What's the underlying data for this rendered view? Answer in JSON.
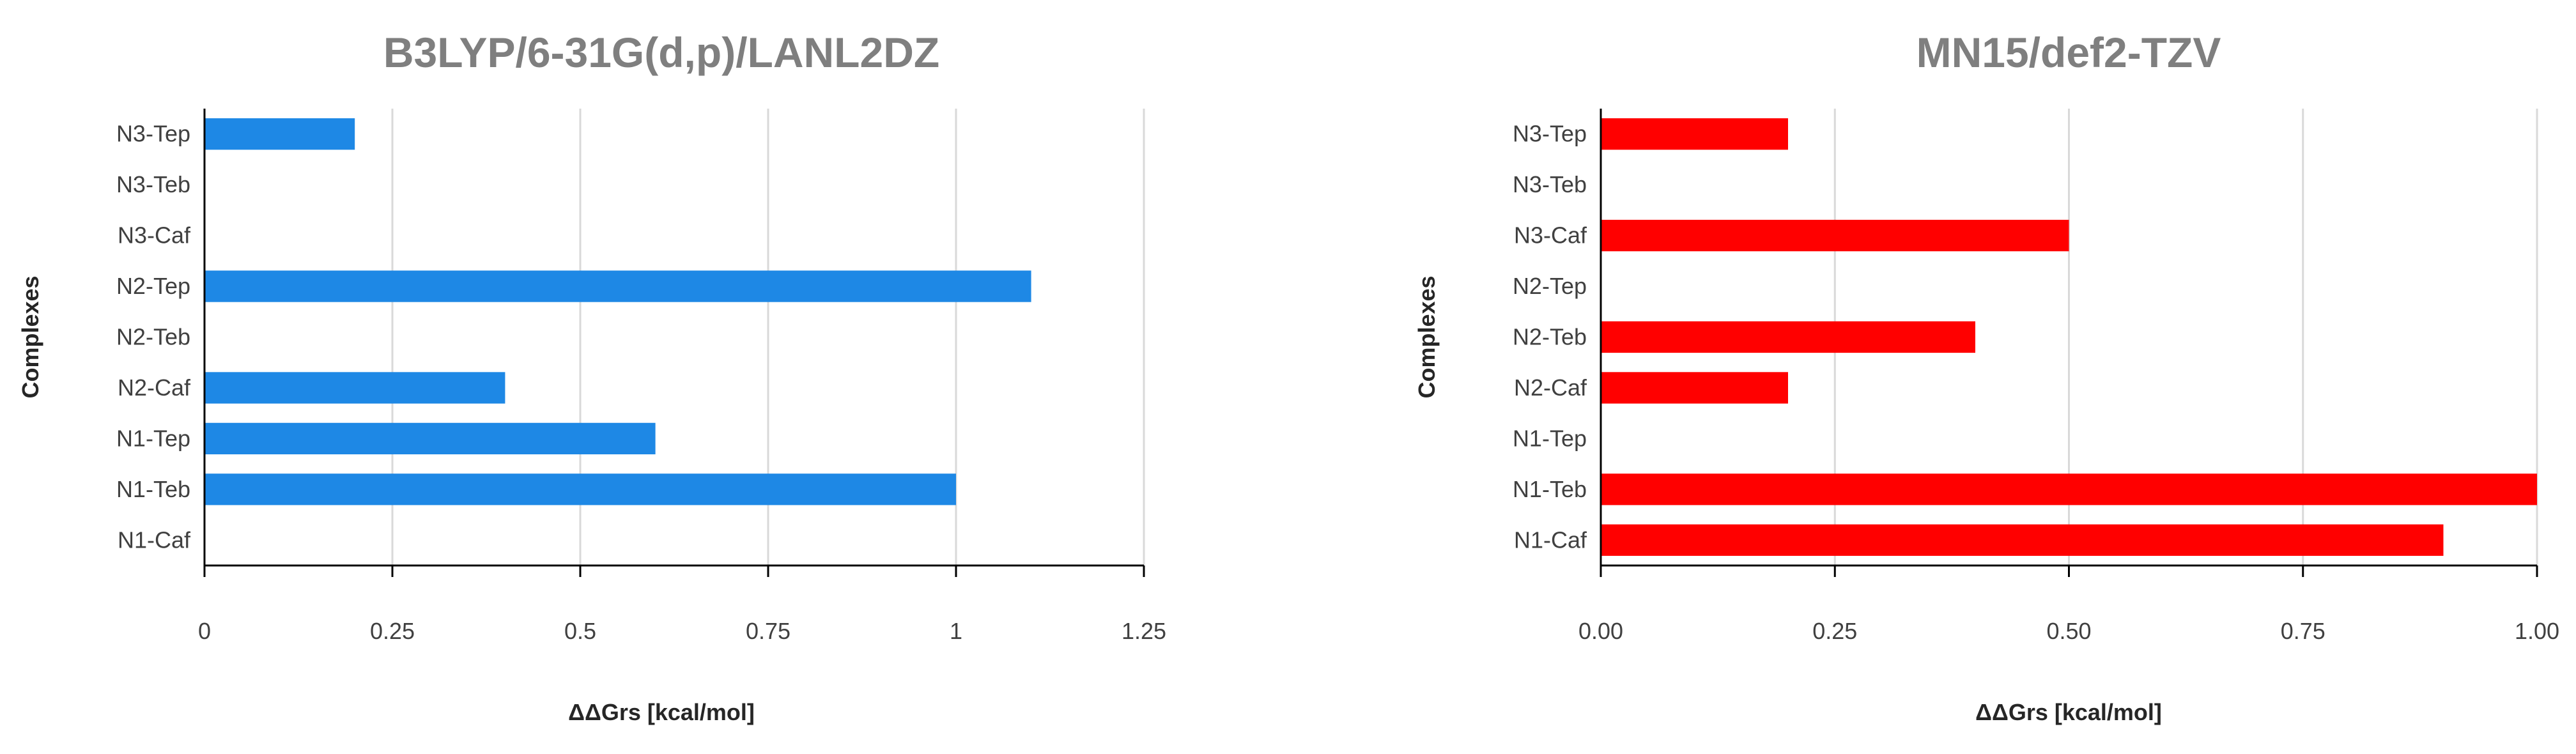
{
  "chart_data": [
    {
      "type": "bar",
      "orientation": "horizontal",
      "title": "B3LYP/6-31G(d,p)/LANL2DZ",
      "xlabel": "ΔΔGrs [kcal/mol]",
      "ylabel": "Complexes",
      "categories": [
        "N1-Caf",
        "N1-Teb",
        "N1-Tep",
        "N2-Caf",
        "N2-Teb",
        "N2-Tep",
        "N3-Caf",
        "N3-Teb",
        "N3-Tep"
      ],
      "values": [
        0,
        1.0,
        0.6,
        0.4,
        0,
        1.1,
        0,
        0,
        0.2
      ],
      "xlim": [
        0,
        1.25
      ],
      "xticks": [
        "0",
        "0.25",
        "0.5",
        "0.75",
        "1",
        "1.25"
      ],
      "grid": "vertical",
      "bar_color": "#1e88e5",
      "legend": "none"
    },
    {
      "type": "bar",
      "orientation": "horizontal",
      "title": "MN15/def2-TZV",
      "xlabel": "ΔΔGrs [kcal/mol]",
      "ylabel": "Complexes",
      "categories": [
        "N1-Caf",
        "N1-Teb",
        "N1-Tep",
        "N2-Caf",
        "N2-Teb",
        "N2-Tep",
        "N3-Caf",
        "N3-Teb",
        "N3-Tep"
      ],
      "values": [
        0.9,
        1.0,
        0,
        0.2,
        0.4,
        0,
        0.5,
        0,
        0.2
      ],
      "xlim": [
        0,
        1.0
      ],
      "xticks": [
        "0.00",
        "0.25",
        "0.50",
        "0.75",
        "1.00"
      ],
      "grid": "vertical",
      "bar_color": "#ff0000",
      "legend": "none"
    }
  ]
}
